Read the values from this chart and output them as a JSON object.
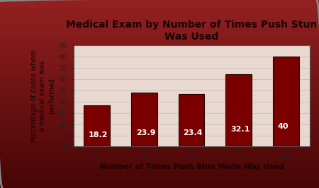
{
  "title": "Medical Exam by Number of Times Push Stun\nWas Used",
  "xlabel": "Number of Times Push Stun Mode Was Used",
  "ylabel": "Percentage of cases where\na medical exam was\nperformed",
  "categories": [
    "1",
    "2",
    "3",
    "4",
    "5+"
  ],
  "values": [
    18.2,
    23.9,
    23.4,
    32.1,
    40
  ],
  "bar_color": "#7a0000",
  "bar_edge_color": "#2a0000",
  "text_color": "#ffffff",
  "title_color": "#1a0000",
  "label_color": "#1a0000",
  "tick_color": "#222222",
  "ylim": [
    0,
    45
  ],
  "yticks": [
    0,
    5,
    10,
    15,
    20,
    25,
    30,
    35,
    40,
    45
  ],
  "plot_bg": "#e8d8d0",
  "bar_label_fontsize": 8,
  "title_fontsize": 10,
  "axis_label_fontsize": 7.5,
  "tick_fontsize": 7
}
